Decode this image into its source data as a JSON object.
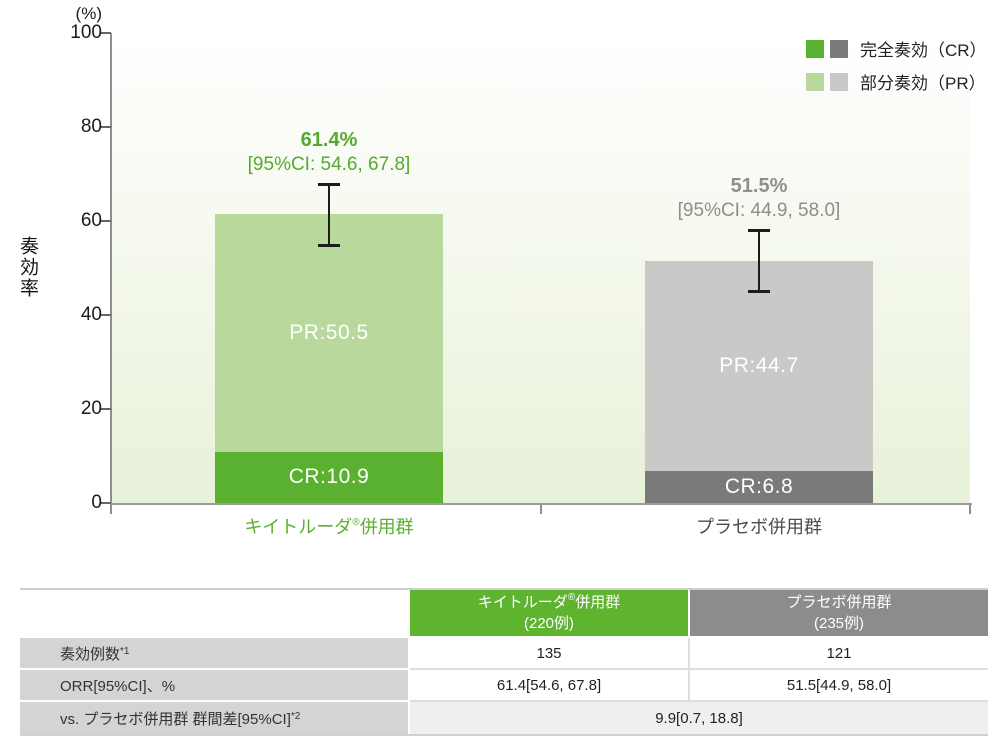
{
  "chart_data": {
    "type": "bar",
    "stacked": true,
    "title": "",
    "ylabel": "奏効率",
    "y_unit": "(%)",
    "ylim": [
      0,
      100
    ],
    "yticks": [
      0,
      20,
      40,
      60,
      80,
      100
    ],
    "grid": false,
    "legend_position": "top-right",
    "categories": [
      "キイトルーダ®併用群",
      "プラセボ併用群"
    ],
    "categories_display": [
      {
        "pre": "キイトルーダ",
        "sup": "®",
        "post": "併用群"
      },
      {
        "pre": "プラセボ併用群",
        "sup": "",
        "post": ""
      }
    ],
    "series": [
      {
        "name": "完全奏効（CR）",
        "values": [
          10.9,
          6.8
        ]
      },
      {
        "name": "部分奏効（PR）",
        "values": [
          50.5,
          44.7
        ]
      }
    ],
    "totals": [
      {
        "orr": 61.4,
        "ci": [
          54.6,
          67.8
        ],
        "label": "61.4%",
        "ci_label": "[95%CI: 54.6, 67.8]"
      },
      {
        "orr": 51.5,
        "ci": [
          44.9,
          58.0
        ],
        "label": "51.5%",
        "ci_label": "[95%CI: 44.9, 58.0]"
      }
    ],
    "bar_value_labels": [
      {
        "cr": "CR:10.9",
        "pr": "PR:50.5"
      },
      {
        "cr": "CR:6.8",
        "pr": "PR:44.7"
      }
    ]
  },
  "table": {
    "header": {
      "group1": {
        "name_pre": "キイトルーダ",
        "name_sup": "®",
        "name_post": "併用群",
        "n": "(220例)"
      },
      "group2": {
        "name": "プラセボ併用群",
        "n": "(235例)"
      }
    },
    "rows": [
      {
        "label": "奏効例数",
        "label_sup": "*1",
        "v1": "135",
        "v2": "121"
      },
      {
        "label": "ORR[95%CI]、%",
        "label_sup": "",
        "v1": "61.4[54.6, 67.8]",
        "v2": "51.5[44.9, 58.0]"
      },
      {
        "label": "vs. プラセボ併用群 群間差[95%CI]",
        "label_sup": "*2",
        "v_span": "9.9[0.7, 18.8]"
      }
    ]
  },
  "colors": {
    "cr_green": "#5ab02f",
    "pr_green": "#b9d89c",
    "cr_gray": "#7a7a7a",
    "pr_gray": "#c9cac7",
    "annotation_green": "#55a92e",
    "annotation_gray": "#8e8e8a",
    "category2_text": "#4c4c48",
    "table_header_green": "#5eb32f",
    "table_header_gray": "#8c8c8c",
    "table_label_bg": "#d4d4d4",
    "table_span_row_bg": "#efefef",
    "plot_bg_top": "#ffffff",
    "plot_bg_bottom": "#e8f1d9"
  }
}
